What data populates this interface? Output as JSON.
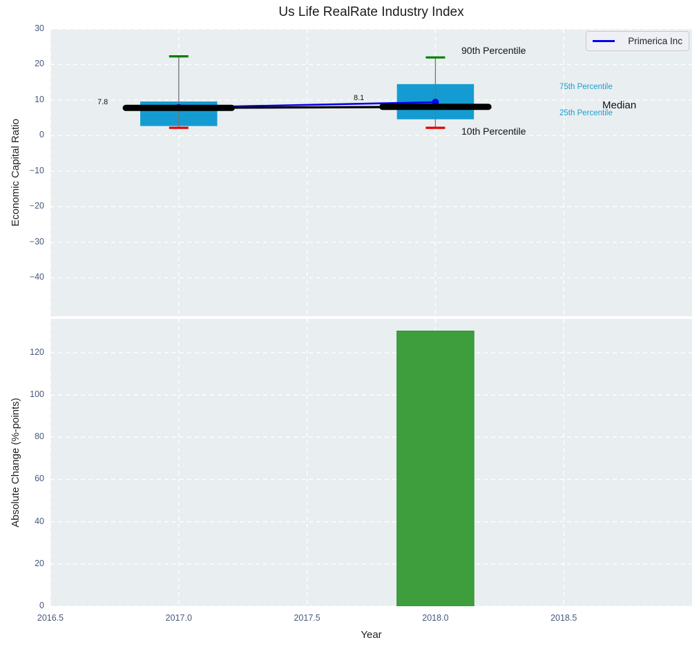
{
  "figure": {
    "title": "Us Life RealRate Industry Index"
  },
  "legend": {
    "label": "Primerica Inc"
  },
  "annotations": {
    "p90": "90th Percentile",
    "p10": "10th Percentile",
    "p75": "75th Percentile",
    "p25": "25th Percentile",
    "median": "Median",
    "median_2017": "7.8",
    "median_2018": "8.1"
  },
  "colors": {
    "axes_background": "#e9eef0",
    "grid": "#ffffff",
    "box_fill": "#149cd2",
    "whisker": "#737373",
    "cap_top": "#008000",
    "cap_bottom": "#e60000",
    "median_line": "#000000",
    "primerica_line": "#0000ee",
    "bar": "#3e9e3e",
    "tick_label": "#46587a",
    "percentile_label": "#18a0d0"
  },
  "chart_data": [
    {
      "type": "boxplot+line",
      "title": "Us Life RealRate Industry Index",
      "ylabel": "Economic Capital Ratio",
      "xlim": [
        2016.5,
        2019.0
      ],
      "ylim": [
        -50.8,
        30
      ],
      "yticks": [
        30,
        20,
        10,
        0,
        -10,
        -20,
        -30,
        -40
      ],
      "xtick_values": [
        2016.5,
        2017.0,
        2017.5,
        2018.0,
        2018.5
      ],
      "grid": true,
      "box_width_years": 0.3,
      "boxes": [
        {
          "x": 2017,
          "p10": 2.2,
          "p25": 2.7,
          "median": 7.8,
          "p75": 9.6,
          "p90": 22.3,
          "median_label": "7.8"
        },
        {
          "x": 2018,
          "p10": 2.2,
          "p25": 4.6,
          "median": 8.1,
          "p75": 14.5,
          "p90": 22.0,
          "median_label": "8.1"
        }
      ],
      "series": [
        {
          "name": "Primerica Inc",
          "style": "line+marker",
          "x": [
            2017,
            2018
          ],
          "y": [
            7.9,
            9.4
          ]
        },
        {
          "name": "Median",
          "style": "line",
          "x": [
            2017,
            2018
          ],
          "y": [
            7.8,
            8.1
          ]
        }
      ],
      "legend_position": "upper right"
    },
    {
      "type": "bar",
      "ylabel": "Absolute Change (%-points)",
      "xlabel": "Year",
      "xlim": [
        2016.5,
        2019.0
      ],
      "ylim": [
        0,
        136
      ],
      "yticks": [
        0,
        20,
        40,
        60,
        80,
        100,
        120
      ],
      "xtick_values": [
        2016.5,
        2017.0,
        2017.5,
        2018.0,
        2018.5
      ],
      "xtick_labels": [
        "2016.5",
        "2017.0",
        "2017.5",
        "2018.0",
        "2018.5"
      ],
      "grid": true,
      "bar_width_years": 0.3,
      "bars": [
        {
          "x": 2018,
          "value": 130.3
        }
      ]
    }
  ]
}
